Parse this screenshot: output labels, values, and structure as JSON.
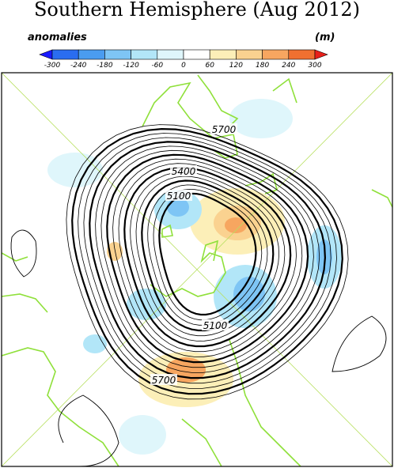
{
  "header": {
    "title": "Southern Hemisphere (Aug 2012)",
    "legend_label": "anomalies",
    "units": "(m)"
  },
  "colorbar": {
    "ticks": [
      -300,
      -240,
      -180,
      -120,
      -60,
      0,
      60,
      120,
      180,
      240,
      300
    ],
    "colors": [
      "#1a1aff",
      "#2a6df0",
      "#4a9cf0",
      "#7ec5f5",
      "#b2e6f8",
      "#dff6fb",
      "#ffffff",
      "#fcefb8",
      "#fad290",
      "#f7a660",
      "#f07030",
      "#e8201a"
    ]
  },
  "contour_labels": [
    5700,
    5400,
    5100,
    5100,
    5700
  ]
}
